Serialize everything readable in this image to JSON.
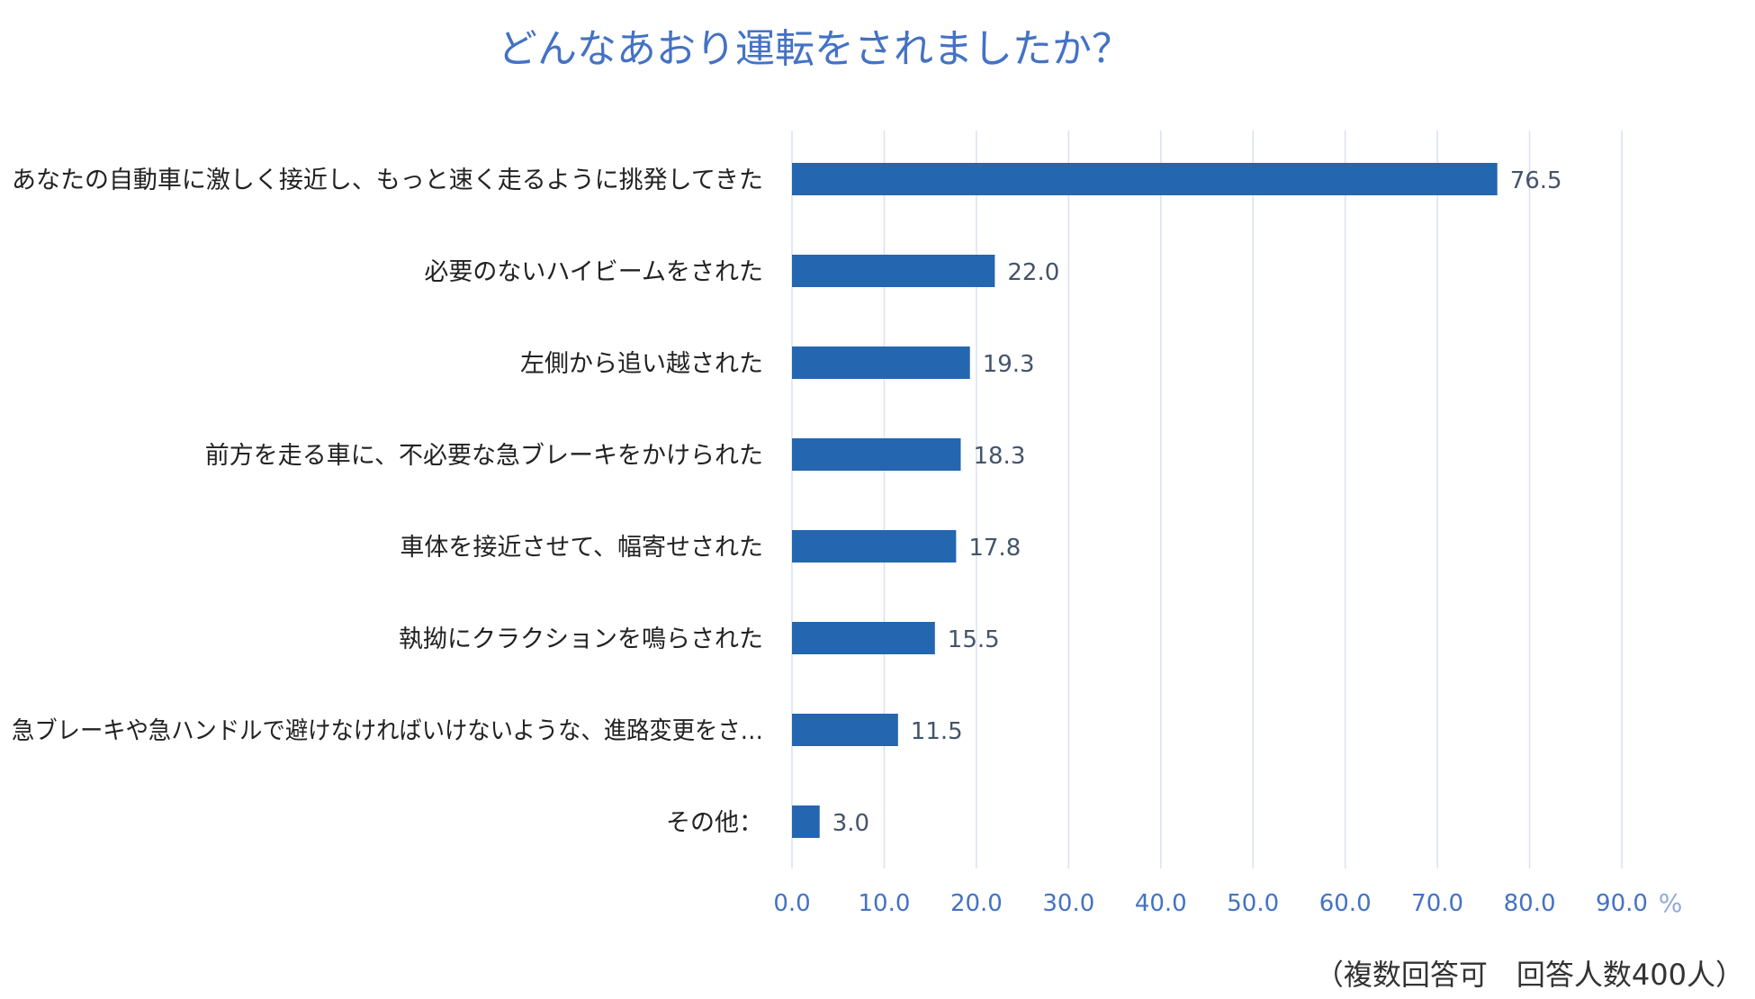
{
  "chart_data": {
    "type": "bar",
    "orientation": "horizontal",
    "title": "どんなあおり運転をされましたか？",
    "categories": [
      "あなたの自動車に激しく接近し、もっと速く走るように挑発してきた",
      "必要のないハイビームをされた",
      "左側から追い越された",
      "前方を走る車に、不必要な急ブレーキをかけられた",
      "車体を接近させて、幅寄せされた",
      "執拗にクラクションを鳴らされた",
      "急ブレーキや急ハンドルで避けなければいけないような、進路変更をさ…",
      "その他："
    ],
    "values": [
      76.5,
      22.0,
      19.3,
      18.3,
      17.8,
      15.5,
      11.5,
      3.0
    ],
    "value_labels": [
      "76.5",
      "22.0",
      "19.3",
      "18.3",
      "17.8",
      "15.5",
      "11.5",
      "3.0"
    ],
    "xlim": [
      0,
      90
    ],
    "xticks": [
      0,
      10,
      20,
      30,
      40,
      50,
      60,
      70,
      80,
      90
    ],
    "xtick_labels": [
      "0.0",
      "10.0",
      "20.0",
      "30.0",
      "40.0",
      "50.0",
      "60.0",
      "70.0",
      "80.0",
      "90.0"
    ],
    "xunit": "%",
    "grid": true,
    "colors": {
      "bar": "#2466AF",
      "value_label": "#44546A",
      "tick": "#4472C4",
      "grid": "#D9E1F2",
      "title": "#4472C4"
    }
  },
  "footnote": "（複数回答可　回答人数400人）"
}
